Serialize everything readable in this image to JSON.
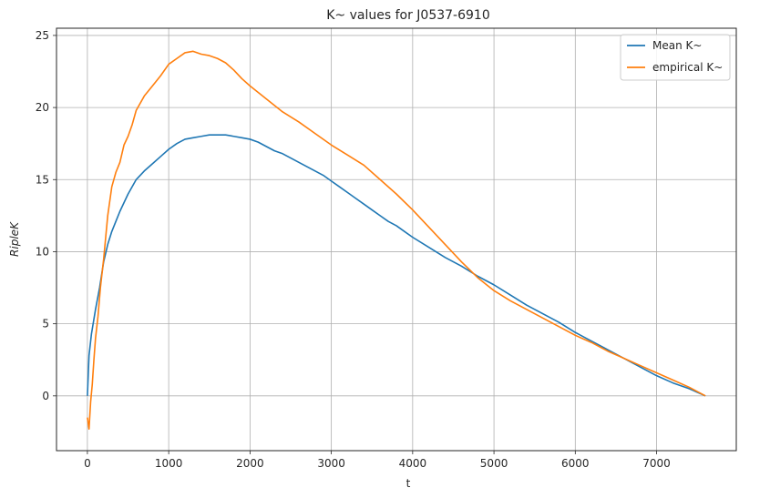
{
  "chart_data": {
    "type": "line",
    "title": "K~ values for J0537-6910",
    "xlabel": "t",
    "ylabel": "RipleK",
    "xlim": [
      -380,
      7980
    ],
    "ylim": [
      -3.8,
      25.5
    ],
    "xticks": [
      0,
      1000,
      2000,
      3000,
      4000,
      5000,
      6000,
      7000
    ],
    "yticks": [
      0,
      5,
      10,
      15,
      20,
      25
    ],
    "grid": true,
    "legend_position": "top-right",
    "series": [
      {
        "name": "Mean K~",
        "color": "#1f77b4",
        "x": [
          0,
          20,
          50,
          100,
          150,
          200,
          250,
          300,
          400,
          500,
          600,
          700,
          800,
          900,
          1000,
          1100,
          1200,
          1300,
          1400,
          1500,
          1600,
          1700,
          1800,
          1900,
          2000,
          2100,
          2200,
          2300,
          2400,
          2500,
          2600,
          2700,
          2800,
          2900,
          3000,
          3100,
          3200,
          3300,
          3400,
          3500,
          3600,
          3700,
          3800,
          3900,
          4000,
          4200,
          4400,
          4600,
          4800,
          5000,
          5200,
          5400,
          5600,
          5800,
          6000,
          6200,
          6400,
          6600,
          6800,
          7000,
          7200,
          7400,
          7600
        ],
        "y": [
          0,
          2.8,
          4.3,
          6.0,
          7.5,
          9.3,
          10.5,
          11.4,
          12.8,
          14.0,
          15.0,
          15.6,
          16.1,
          16.6,
          17.1,
          17.5,
          17.8,
          17.9,
          18.0,
          18.1,
          18.1,
          18.1,
          18.0,
          17.9,
          17.8,
          17.6,
          17.3,
          17.0,
          16.8,
          16.5,
          16.2,
          15.9,
          15.6,
          15.3,
          14.9,
          14.5,
          14.1,
          13.7,
          13.3,
          12.9,
          12.5,
          12.1,
          11.8,
          11.4,
          11.0,
          10.3,
          9.6,
          9.0,
          8.3,
          7.7,
          7.0,
          6.3,
          5.7,
          5.1,
          4.4,
          3.8,
          3.2,
          2.6,
          2.0,
          1.4,
          0.9,
          0.5,
          0.0
        ]
      },
      {
        "name": "empirical K~",
        "color": "#ff7f0e",
        "x": [
          0,
          20,
          40,
          60,
          80,
          100,
          130,
          160,
          200,
          250,
          300,
          350,
          400,
          450,
          500,
          550,
          600,
          700,
          800,
          900,
          1000,
          1100,
          1200,
          1300,
          1400,
          1500,
          1600,
          1700,
          1800,
          1900,
          2000,
          2200,
          2400,
          2600,
          2800,
          3000,
          3200,
          3400,
          3600,
          3800,
          4000,
          4200,
          4400,
          4600,
          4800,
          5000,
          5200,
          5400,
          5600,
          5800,
          6000,
          6200,
          6400,
          6600,
          6800,
          7000,
          7200,
          7400,
          7600
        ],
        "y": [
          -1.5,
          -2.3,
          -0.4,
          0.8,
          2.5,
          4.0,
          5.5,
          7.5,
          9.5,
          12.5,
          14.5,
          15.5,
          16.2,
          17.4,
          18.0,
          18.8,
          19.8,
          20.8,
          21.5,
          22.2,
          23.0,
          23.4,
          23.8,
          23.9,
          23.7,
          23.6,
          23.4,
          23.1,
          22.6,
          22.0,
          21.5,
          20.6,
          19.7,
          19.0,
          18.2,
          17.4,
          16.7,
          16.0,
          15.0,
          14.0,
          12.9,
          11.7,
          10.5,
          9.3,
          8.2,
          7.3,
          6.6,
          6.0,
          5.4,
          4.8,
          4.2,
          3.7,
          3.1,
          2.6,
          2.1,
          1.6,
          1.1,
          0.6,
          0.0
        ]
      }
    ]
  }
}
